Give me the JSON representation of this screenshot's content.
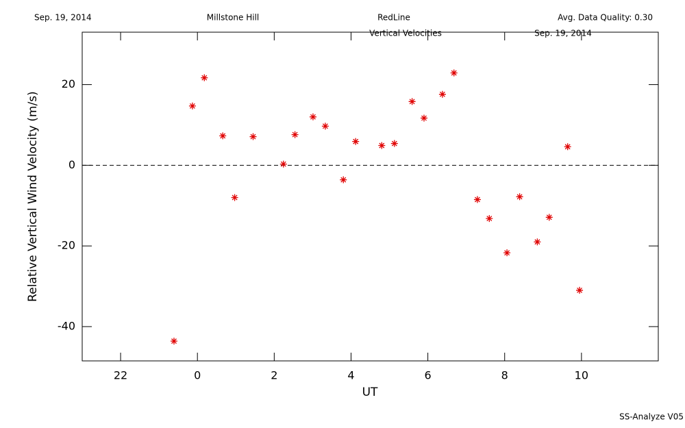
{
  "chart_data": {
    "type": "scatter",
    "header": [
      "Sep. 19, 2014",
      "Millstone Hill",
      "RedLine",
      "Avg. Data Quality: 0.30"
    ],
    "title": "Vertical Velocities",
    "subtitle": "Sep. 19, 2014",
    "footer": "SS-Analyze V05",
    "xlabel": "UT",
    "ylabel": "Relative Vertical Wind Velocity (m/s)",
    "xlim": [
      -3,
      12
    ],
    "ylim": [
      -48.5,
      33
    ],
    "xticks": [
      {
        "value": -2,
        "label": "22"
      },
      0,
      2,
      4,
      6,
      8,
      10
    ],
    "yticks": [
      -40,
      -20,
      0,
      20
    ],
    "reference_line": 0,
    "series": [
      {
        "color": "#e00000",
        "x": [
          -0.61,
          -0.13,
          0.18,
          0.66,
          0.97,
          1.45,
          2.24,
          2.54,
          3.01,
          3.33,
          3.8,
          4.12,
          4.8,
          5.13,
          5.59,
          5.9,
          6.38,
          6.68,
          7.29,
          7.6,
          8.06,
          8.39,
          8.85,
          9.16,
          9.64,
          9.95
        ],
        "values": [
          -43.6,
          14.7,
          21.7,
          7.3,
          -8.0,
          7.1,
          0.3,
          7.6,
          12.0,
          9.7,
          -3.6,
          5.9,
          4.9,
          5.4,
          15.8,
          11.7,
          17.6,
          22.9,
          -8.5,
          -13.2,
          -21.7,
          -7.8,
          -19.0,
          -12.9,
          4.6,
          -31.0
        ]
      }
    ]
  }
}
